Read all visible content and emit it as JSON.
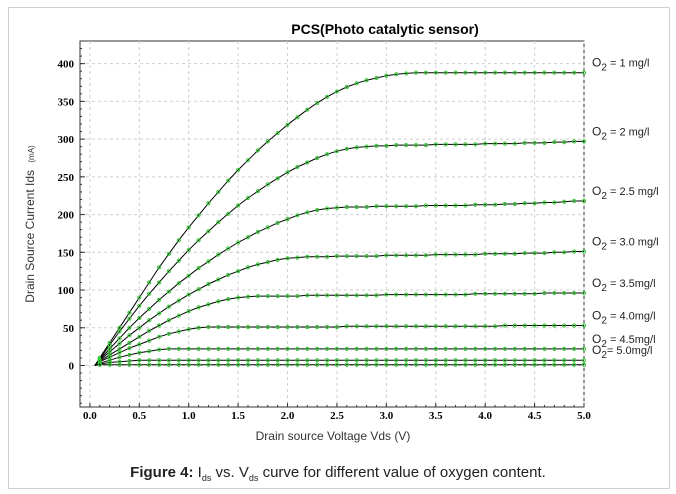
{
  "chart_data": {
    "type": "line",
    "title": "PCS(Photo catalytic sensor)",
    "xlabel": "Drain source Voltage Vds (V)",
    "ylabel_main": "Drain Source Current Ids",
    "ylabel_unit": "(mA)",
    "xlim": [
      -0.1,
      5.0
    ],
    "ylim": [
      -55,
      430
    ],
    "xticks": [
      "0.0",
      "0.5",
      "1.0",
      "1.5",
      "2.0",
      "2.5",
      "3.0",
      "3.5",
      "4.0",
      "4.5",
      "5.0"
    ],
    "yticks": [
      "0",
      "50",
      "100",
      "150",
      "200",
      "250",
      "300",
      "350",
      "400"
    ],
    "grid": true,
    "line_color": "#000000",
    "marker_color": "#33cc33",
    "x": [
      0.05,
      0.1,
      0.2,
      0.3,
      0.4,
      0.5,
      0.6,
      0.7,
      0.8,
      0.9,
      1.0,
      1.1,
      1.2,
      1.3,
      1.4,
      1.5,
      1.6,
      1.7,
      1.8,
      1.9,
      2.0,
      2.1,
      2.2,
      2.3,
      2.4,
      2.5,
      2.6,
      2.7,
      2.8,
      2.9,
      3.0,
      3.1,
      3.2,
      3.3,
      3.4,
      3.5,
      3.6,
      3.7,
      3.8,
      3.9,
      4.0,
      4.1,
      4.2,
      4.3,
      4.4,
      4.5,
      4.6,
      4.7,
      4.8,
      4.9,
      5.0
    ],
    "series": [
      {
        "label_prefix": "O",
        "label_sub": "2",
        "label_rest": " = 1 mg/l",
        "values": [
          0,
          10,
          30,
          50,
          70,
          90,
          110,
          130,
          148,
          166,
          183,
          199,
          215,
          230,
          245,
          259,
          272,
          285,
          297,
          308,
          319,
          329,
          339,
          348,
          356,
          363,
          369,
          374,
          378,
          381,
          384,
          386,
          387,
          388,
          388,
          388,
          388,
          388,
          388,
          388,
          388,
          388,
          388,
          388,
          388,
          388,
          388,
          388,
          388,
          388,
          388
        ]
      },
      {
        "label_prefix": "O",
        "label_sub": "2",
        "label_rest": " = 2 mg/l",
        "values": [
          0,
          9,
          27,
          45,
          62,
          79,
          95,
          110,
          125,
          139,
          153,
          166,
          178,
          190,
          201,
          212,
          222,
          231,
          240,
          248,
          256,
          263,
          269,
          275,
          280,
          284,
          287,
          289,
          290,
          291,
          291,
          292,
          292,
          292,
          292,
          293,
          293,
          293,
          293,
          293,
          294,
          294,
          294,
          294,
          295,
          295,
          295,
          296,
          296,
          297,
          297
        ]
      },
      {
        "label_prefix": "O",
        "label_sub": "2",
        "label_rest": " = 2.5 mg/l",
        "values": [
          0,
          8,
          22,
          36,
          50,
          63,
          75,
          87,
          98,
          109,
          119,
          129,
          138,
          147,
          155,
          163,
          170,
          177,
          183,
          189,
          194,
          199,
          203,
          206,
          208,
          209,
          210,
          210,
          210,
          211,
          211,
          211,
          211,
          211,
          212,
          212,
          212,
          212,
          212,
          213,
          213,
          213,
          214,
          214,
          215,
          215,
          216,
          216,
          217,
          218,
          218
        ]
      },
      {
        "label_prefix": "O",
        "label_sub": "2",
        "label_rest": " = 3.0 mg/l",
        "values": [
          0,
          7,
          18,
          29,
          40,
          50,
          60,
          69,
          78,
          86,
          94,
          101,
          108,
          114,
          120,
          125,
          130,
          134,
          137,
          140,
          142,
          143,
          144,
          144,
          144,
          145,
          145,
          145,
          145,
          145,
          146,
          146,
          146,
          146,
          146,
          147,
          147,
          147,
          147,
          147,
          148,
          148,
          148,
          148,
          149,
          149,
          149,
          150,
          150,
          151,
          151
        ]
      },
      {
        "label_prefix": "O",
        "label_sub": "2",
        "label_rest": " = 3.5mg/l",
        "values": [
          0,
          6,
          14,
          22,
          30,
          38,
          46,
          53,
          60,
          66,
          72,
          77,
          81,
          85,
          88,
          90,
          91,
          92,
          92,
          92,
          92,
          92,
          93,
          93,
          93,
          93,
          93,
          93,
          93,
          93,
          94,
          94,
          94,
          94,
          94,
          94,
          94,
          94,
          94,
          95,
          95,
          95,
          95,
          95,
          95,
          95,
          96,
          96,
          96,
          96,
          96
        ]
      },
      {
        "label_prefix": "O",
        "label_sub": "2",
        "label_rest": " = 4.0mg/l",
        "values": [
          0,
          5,
          11,
          17,
          23,
          28,
          33,
          38,
          42,
          45,
          48,
          50,
          51,
          51,
          51,
          51,
          51,
          51,
          51,
          51,
          51,
          51,
          51,
          51,
          51,
          51,
          52,
          52,
          52,
          52,
          52,
          52,
          52,
          52,
          52,
          52,
          52,
          52,
          52,
          52,
          52,
          52,
          53,
          53,
          53,
          53,
          53,
          53,
          53,
          53,
          53
        ]
      },
      {
        "label_prefix": "O",
        "label_sub": "2",
        "label_rest": " = 4.5mg/l",
        "values": [
          0,
          3,
          7,
          11,
          14,
          17,
          19,
          21,
          22,
          22,
          22,
          22,
          22,
          22,
          22,
          22,
          22,
          22,
          22,
          22,
          22,
          22,
          22,
          22,
          22,
          22,
          22,
          22,
          22,
          22,
          22,
          22,
          22,
          22,
          22,
          22,
          22,
          22,
          22,
          22,
          22,
          22,
          22,
          22,
          22,
          22,
          22,
          22,
          22,
          22,
          22
        ]
      },
      {
        "label_prefix": "O",
        "label_sub": "2",
        "label_rest": "= 5.0mg/l",
        "values": [
          0,
          2,
          4,
          5,
          6,
          7,
          7,
          7,
          7,
          7,
          7,
          7,
          7,
          7,
          7,
          7,
          7,
          7,
          7,
          7,
          7,
          7,
          7,
          7,
          7,
          7,
          7,
          7,
          7,
          7,
          7,
          7,
          7,
          7,
          7,
          7,
          7,
          7,
          7,
          7,
          7,
          7,
          7,
          7,
          7,
          7,
          7,
          7,
          7,
          7,
          7
        ]
      },
      {
        "label_prefix": "",
        "label_sub": "",
        "label_rest": "",
        "values": [
          0,
          1,
          1,
          1,
          1,
          1,
          1,
          1,
          1,
          1,
          1,
          1,
          1,
          1,
          1,
          1,
          1,
          1,
          1,
          1,
          1,
          1,
          1,
          1,
          1,
          1,
          1,
          1,
          1,
          1,
          1,
          1,
          1,
          1,
          1,
          1,
          1,
          1,
          1,
          1,
          1,
          1,
          1,
          1,
          1,
          1,
          1,
          1,
          1,
          1,
          1
        ]
      }
    ]
  },
  "caption": {
    "figure_label": "Figure 4:",
    "text_a": " I",
    "sub_a": "ds",
    "text_b": " vs. V",
    "sub_b": "ds",
    "text_c": " curve for different value of oxygen content."
  }
}
